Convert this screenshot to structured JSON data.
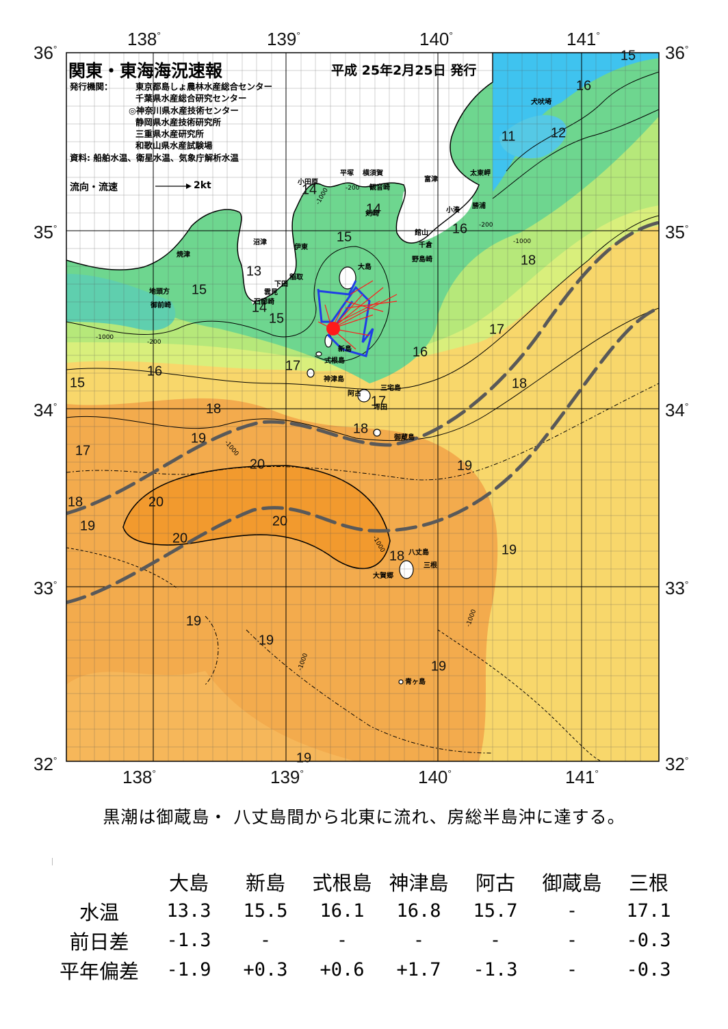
{
  "title": "関東・東海海況速報",
  "issue_date": "平成 25年2月25日 発行",
  "publisher_label": "発行機関：",
  "publishers": [
    "東京都島しょ農林水産総合センター",
    "千葉県水産総合研究センター",
    "◎神奈川県水産技術センター",
    "静岡県水産技術研究所",
    "三重県水産研究所",
    "和歌山県水産試験場"
  ],
  "sources": "資料: 船舶水温、衛星水温、気象庁解析水温",
  "flow_legend": {
    "label": "流向・流速",
    "unit": "2kt"
  },
  "axes": {
    "lon_labels": [
      "138",
      "139",
      "140",
      "141"
    ],
    "lat_labels": [
      "36",
      "35",
      "34",
      "33",
      "32"
    ],
    "degree": "°"
  },
  "temp_labels": [
    "15",
    "16",
    "14",
    "11",
    "12",
    "14",
    "15",
    "16",
    "13",
    "15",
    "14",
    "15",
    "18",
    "17",
    "17",
    "16",
    "18",
    "15",
    "16",
    "17",
    "18",
    "18",
    "19",
    "17",
    "19",
    "20",
    "20",
    "20",
    "20",
    "18",
    "19",
    "19",
    "18",
    "19",
    "19",
    "19",
    "19"
  ],
  "places": [
    "犬吠埼",
    "太東岬",
    "勝浦",
    "小湊",
    "小田原",
    "平塚",
    "横須賀",
    "観音崎",
    "剣崎",
    "富津",
    "館山",
    "千倉",
    "野島崎",
    "沼津",
    "伊東",
    "大島",
    "稲取",
    "下田",
    "雲見",
    "石廊崎",
    "焼津",
    "地頭方",
    "御前崎",
    "新島",
    "式根島",
    "神津島",
    "三宅島",
    "阿古",
    "坪田",
    "御蔵島",
    "八丈島",
    "三根",
    "大賀郷",
    "青ヶ島"
  ],
  "depth_labels": [
    "-200",
    "-1000"
  ],
  "summary": "黒潮は御蔵島・ 八丈島間から北東に流れ、房総半島沖に達する。",
  "table": {
    "columns": [
      "大島",
      "新島",
      "式根島",
      "神津島",
      "阿古",
      "御蔵島",
      "三根"
    ],
    "rows": [
      {
        "label": "水温",
        "values": [
          "13.3",
          "15.5",
          "16.1",
          "16.8",
          "15.7",
          "-",
          "17.1"
        ]
      },
      {
        "label": "前日差",
        "values": [
          "-1.3",
          "-",
          "-",
          "-",
          "-",
          "-",
          "-0.3"
        ]
      },
      {
        "label": "平年偏差",
        "values": [
          "-1.9",
          "+0.3",
          "+0.6",
          "+1.7",
          "-1.3",
          "-",
          "-0.3"
        ]
      }
    ]
  },
  "colors": {
    "cold": "#3fc3ef",
    "cool": "#6ed68f",
    "mild": "#b6e87a",
    "warm_yellow": "#f8d76b",
    "warm_orange": "#f3ab4d",
    "kuroshio_core": "#f29a2e",
    "land": "#ffffff",
    "kuroshio_edge": "#595959",
    "ship_track": "#1f3de6",
    "flow_vectors": "#ff1a1a"
  }
}
